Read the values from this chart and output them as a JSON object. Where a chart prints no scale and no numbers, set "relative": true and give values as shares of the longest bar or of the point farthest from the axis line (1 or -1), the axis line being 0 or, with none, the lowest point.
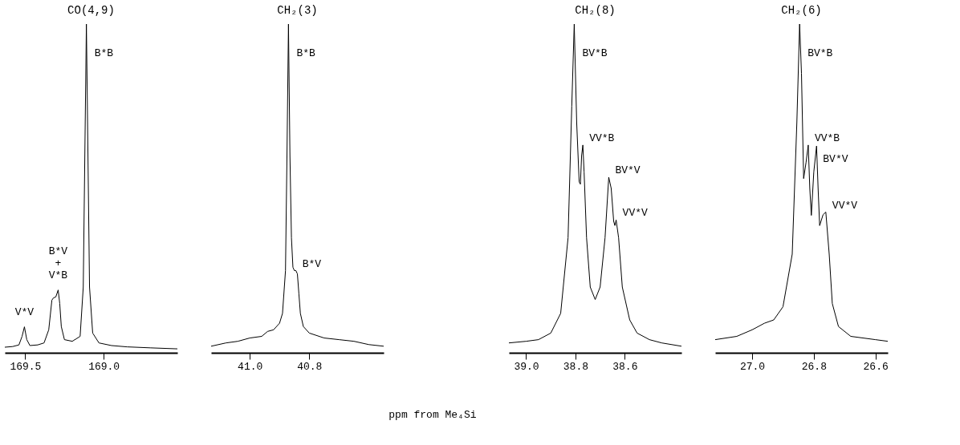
{
  "chart_data": [
    {
      "type": "line",
      "title": "CO(4,9)",
      "relative": true,
      "tick_labels": "x",
      "grid": false,
      "xlim": [
        169.63,
        168.53
      ],
      "xticks": [
        169.5,
        {
          "value": 169.0,
          "label": "169.0"
        }
      ],
      "x": [
        169.63,
        169.58,
        169.54,
        169.52,
        169.505,
        169.49,
        169.47,
        169.42,
        169.38,
        169.35,
        169.33,
        169.32,
        169.305,
        169.29,
        169.28,
        169.27,
        169.25,
        169.2,
        169.15,
        169.13,
        169.12,
        169.11,
        169.1,
        169.09,
        169.07,
        169.03,
        168.95,
        168.85,
        168.7,
        168.53
      ],
      "series": [
        {
          "color": "#000000",
          "values": [
            0.017,
            0.019,
            0.024,
            0.05,
            0.079,
            0.04,
            0.022,
            0.024,
            0.03,
            0.07,
            0.16,
            0.167,
            0.17,
            0.191,
            0.15,
            0.08,
            0.04,
            0.035,
            0.05,
            0.2,
            0.6,
            1,
            0.6,
            0.2,
            0.06,
            0.03,
            0.022,
            0.018,
            0.015,
            0.012
          ]
        }
      ],
      "annotations": [
        {
          "text": "B*B",
          "x": 169.11,
          "y": 1
        },
        {
          "text": "V*V",
          "x": 169.505,
          "y": 0.079
        },
        {
          "text": "B*V\n+\nV*B",
          "x": 169.29,
          "y": 0.191
        }
      ]
    },
    {
      "type": "line",
      "title": "CH₂(3)",
      "relative": true,
      "tick_labels": "x",
      "grid": false,
      "xlim": [
        41.13,
        40.55
      ],
      "xticks": [
        {
          "value": 41.0,
          "label": "41.0"
        },
        40.8
      ],
      "xlabel": "ppm from Me₄Si",
      "x": [
        41.13,
        41.08,
        41.04,
        41.0,
        40.96,
        40.94,
        40.92,
        40.9,
        40.89,
        40.88,
        40.875,
        40.87,
        40.865,
        40.86,
        40.855,
        40.85,
        40.845,
        40.84,
        40.835,
        40.83,
        40.82,
        40.8,
        40.75,
        40.7,
        40.65,
        40.6,
        40.55
      ],
      "series": [
        {
          "color": "#000000",
          "values": [
            0.02,
            0.03,
            0.035,
            0.045,
            0.05,
            0.065,
            0.07,
            0.09,
            0.12,
            0.25,
            0.6,
            1,
            0.6,
            0.35,
            0.26,
            0.25,
            0.25,
            0.24,
            0.18,
            0.12,
            0.08,
            0.06,
            0.045,
            0.04,
            0.035,
            0.025,
            0.02
          ]
        }
      ],
      "annotations": [
        {
          "text": "B*B",
          "x": 40.87,
          "y": 1
        },
        {
          "text": "B*V",
          "x": 40.845,
          "y": 0.25
        }
      ]
    },
    {
      "type": "line",
      "title": "CH₂(8)",
      "relative": true,
      "tick_labels": "x",
      "grid": false,
      "xlim": [
        39.07,
        38.37
      ],
      "xticks": [
        {
          "value": 39.0,
          "label": "39.0"
        },
        38.8,
        38.6
      ],
      "x": [
        39.07,
        39.0,
        38.95,
        38.9,
        38.86,
        38.83,
        38.815,
        38.805,
        38.795,
        38.785,
        38.78,
        38.775,
        38.77,
        38.765,
        38.755,
        38.74,
        38.72,
        38.7,
        38.68,
        38.665,
        38.655,
        38.645,
        38.64,
        38.635,
        38.625,
        38.61,
        38.58,
        38.55,
        38.5,
        38.45,
        38.37
      ],
      "series": [
        {
          "color": "#000000",
          "values": [
            0.03,
            0.035,
            0.04,
            0.06,
            0.12,
            0.35,
            0.75,
            1,
            0.7,
            0.52,
            0.513,
            0.6,
            0.632,
            0.55,
            0.35,
            0.2,
            0.162,
            0.2,
            0.35,
            0.534,
            0.5,
            0.4,
            0.387,
            0.404,
            0.35,
            0.2,
            0.1,
            0.06,
            0.04,
            0.03,
            0.02
          ]
        }
      ],
      "annotations": [
        {
          "text": "BV*B",
          "x": 38.805,
          "y": 1
        },
        {
          "text": "VV*B",
          "x": 38.77,
          "y": 0.632
        },
        {
          "text": "BV*V",
          "x": 38.665,
          "y": 0.534
        },
        {
          "text": "VV*V",
          "x": 38.635,
          "y": 0.404
        }
      ]
    },
    {
      "type": "line",
      "title": "CH₂(6)",
      "relative": true,
      "tick_labels": "x",
      "grid": false,
      "xlim": [
        27.12,
        26.56
      ],
      "xticks": [
        {
          "value": 27.0,
          "label": "27.0"
        },
        26.8,
        26.6
      ],
      "x": [
        27.12,
        27.05,
        27.0,
        26.96,
        26.93,
        26.9,
        26.87,
        26.855,
        26.846,
        26.84,
        26.833,
        26.825,
        26.818,
        26.813,
        26.808,
        26.8,
        26.791,
        26.786,
        26.781,
        26.77,
        26.761,
        26.75,
        26.74,
        26.72,
        26.68,
        26.6,
        26.56
      ],
      "series": [
        {
          "color": "#000000",
          "values": [
            0.04,
            0.05,
            0.07,
            0.09,
            0.1,
            0.14,
            0.3,
            0.7,
            1,
            0.85,
            0.53,
            0.58,
            0.632,
            0.5,
            0.418,
            0.55,
            0.629,
            0.5,
            0.387,
            0.42,
            0.428,
            0.3,
            0.15,
            0.08,
            0.05,
            0.04,
            0.035
          ]
        }
      ],
      "annotations": [
        {
          "text": "BV*B",
          "x": 26.846,
          "y": 1
        },
        {
          "text": "VV*B",
          "x": 26.818,
          "y": 0.632
        },
        {
          "text": "BV*V",
          "x": 26.791,
          "y": 0.629
        },
        {
          "text": "VV*V",
          "x": 26.761,
          "y": 0.428
        }
      ]
    }
  ]
}
